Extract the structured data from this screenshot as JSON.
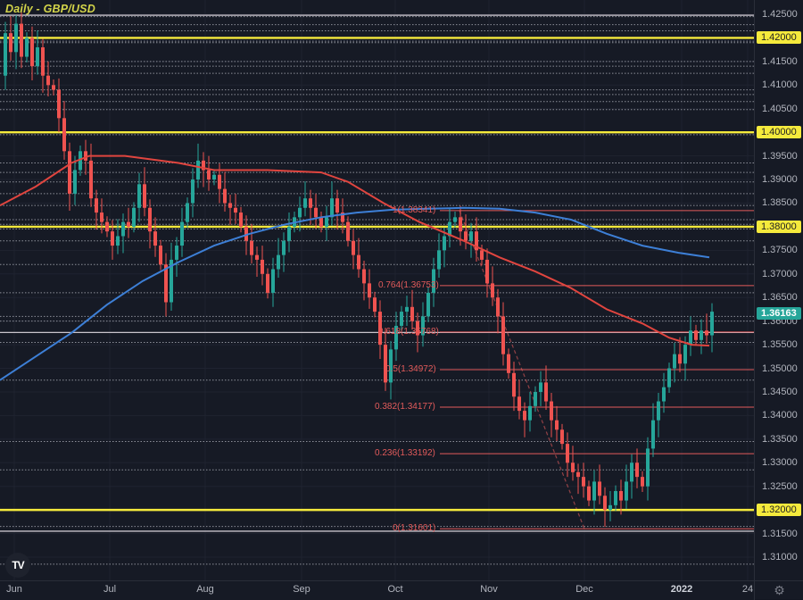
{
  "header": {
    "title": "Daily - GBP/USD"
  },
  "colors": {
    "background": "#161a25",
    "grid": "#1f2330",
    "bull": "#26a69a",
    "bear": "#ef5350",
    "ma_red": "#e0453f",
    "ma_blue": "#3d7fd6",
    "level_yellow": "#f5ea3c",
    "fib": "#e35b5b",
    "dotted": "#8c8f99",
    "last_price_bg": "#26a69a",
    "highlight_label_bg": "#f5ea3c"
  },
  "price_axis": {
    "ticks": [
      "1.42500",
      "1.42000",
      "1.41500",
      "1.41000",
      "1.40500",
      "1.40000",
      "1.39500",
      "1.39000",
      "1.38500",
      "1.38000",
      "1.37500",
      "1.37000",
      "1.36500",
      "1.36000",
      "1.35500",
      "1.35000",
      "1.34500",
      "1.34000",
      "1.33500",
      "1.33000",
      "1.32500",
      "1.32000",
      "1.31500",
      "1.31000"
    ],
    "highlighted": [
      "1.42000",
      "1.40000",
      "1.38000",
      "1.32000"
    ],
    "last_price": "1.36163"
  },
  "time_axis": {
    "labels": [
      {
        "text": "Jun",
        "x": 16,
        "bold": false
      },
      {
        "text": "Jul",
        "x": 123,
        "bold": false
      },
      {
        "text": "Aug",
        "x": 230,
        "bold": false
      },
      {
        "text": "Sep",
        "x": 338,
        "bold": false
      },
      {
        "text": "Oct",
        "x": 443,
        "bold": false
      },
      {
        "text": "Nov",
        "x": 548,
        "bold": false
      },
      {
        "text": "Dec",
        "x": 655,
        "bold": false
      },
      {
        "text": "2022",
        "x": 764,
        "bold": true
      },
      {
        "text": "24",
        "x": 838,
        "bold": false
      }
    ]
  },
  "fib_levels": [
    {
      "ratio": "1",
      "price": 1.38341,
      "label": "1(1.38341)"
    },
    {
      "ratio": "0.764",
      "price": 1.36753,
      "label": "0.764(1.36753)"
    },
    {
      "ratio": "0.618",
      "price": 1.35768,
      "label": "0.618(1.35768)"
    },
    {
      "ratio": "0.5",
      "price": 1.34972,
      "label": "0.5(1.34972)"
    },
    {
      "ratio": "0.382",
      "price": 1.34177,
      "label": "0.382(1.34177)"
    },
    {
      "ratio": "0.236",
      "price": 1.33192,
      "label": "0.236(1.33192)"
    },
    {
      "ratio": "0",
      "price": 1.31601,
      "label": "0(1.31601)"
    }
  ],
  "horizontal_levels": {
    "yellow": [
      1.42,
      1.4,
      1.38,
      1.32
    ],
    "white": [
      1.4248,
      1.3576,
      1.3155
    ]
  },
  "footer": {
    "logo": "TV",
    "settings_icon": "⚙"
  },
  "chart_data": {
    "type": "candlestick",
    "title": "Daily - GBP/USD",
    "symbol": "GBP/USD",
    "timeframe": "Daily",
    "xlabel": "",
    "ylabel": "",
    "x_ticks": [
      "Jun",
      "Jul",
      "Aug",
      "Sep",
      "Oct",
      "Nov",
      "Dec",
      "2022",
      "24"
    ],
    "y_ticks": [
      1.425,
      1.42,
      1.415,
      1.41,
      1.405,
      1.4,
      1.395,
      1.39,
      1.385,
      1.38,
      1.375,
      1.37,
      1.365,
      1.36,
      1.355,
      1.35,
      1.345,
      1.34,
      1.335,
      1.33,
      1.325,
      1.32,
      1.315,
      1.31
    ],
    "ylim": [
      1.307,
      1.4275
    ],
    "grid": true,
    "last_price": 1.36163,
    "support_resistance_levels": [
      1.42,
      1.4,
      1.38,
      1.32
    ],
    "fibonacci_retracement": {
      "high": 1.38341,
      "low": 1.31601,
      "levels": [
        {
          "ratio": 1,
          "price": 1.38341
        },
        {
          "ratio": 0.764,
          "price": 1.36753
        },
        {
          "ratio": 0.618,
          "price": 1.35768
        },
        {
          "ratio": 0.5,
          "price": 1.34972
        },
        {
          "ratio": 0.382,
          "price": 1.34177
        },
        {
          "ratio": 0.236,
          "price": 1.33192
        },
        {
          "ratio": 0,
          "price": 1.31601
        }
      ]
    },
    "moving_averages": [
      {
        "name": "MA (red, ~100-day)",
        "color": "#e0453f",
        "points": [
          [
            0,
            1.3845
          ],
          [
            40,
            1.3885
          ],
          [
            80,
            1.3935
          ],
          [
            100,
            1.395
          ],
          [
            140,
            1.395
          ],
          [
            200,
            1.3935
          ],
          [
            240,
            1.392
          ],
          [
            300,
            1.392
          ],
          [
            360,
            1.3915
          ],
          [
            390,
            1.3895
          ],
          [
            430,
            1.385
          ],
          [
            470,
            1.381
          ],
          [
            520,
            1.377
          ],
          [
            560,
            1.3735
          ],
          [
            600,
            1.3705
          ],
          [
            640,
            1.367
          ],
          [
            680,
            1.3625
          ],
          [
            720,
            1.3595
          ],
          [
            750,
            1.3565
          ],
          [
            775,
            1.355
          ],
          [
            795,
            1.3548
          ]
        ]
      },
      {
        "name": "MA (blue, ~200-day)",
        "color": "#3d7fd6",
        "points": [
          [
            0,
            1.3475
          ],
          [
            40,
            1.3525
          ],
          [
            80,
            1.3575
          ],
          [
            120,
            1.3635
          ],
          [
            160,
            1.3685
          ],
          [
            200,
            1.3725
          ],
          [
            240,
            1.376
          ],
          [
            280,
            1.3785
          ],
          [
            320,
            1.3805
          ],
          [
            360,
            1.382
          ],
          [
            400,
            1.383
          ],
          [
            440,
            1.3836
          ],
          [
            480,
            1.3838
          ],
          [
            520,
            1.384
          ],
          [
            560,
            1.3838
          ],
          [
            600,
            1.383
          ],
          [
            640,
            1.3815
          ],
          [
            680,
            1.3785
          ],
          [
            720,
            1.376
          ],
          [
            760,
            1.3745
          ],
          [
            795,
            1.3735
          ]
        ]
      }
    ],
    "price_path_summary": [
      {
        "period": "early Jun",
        "high": 1.4245,
        "close_area": 1.417
      },
      {
        "period": "mid Jun",
        "low": 1.3785,
        "note": "sharp drop below 1.40"
      },
      {
        "period": "Jul",
        "range": [
          1.3575,
          1.3985
        ]
      },
      {
        "period": "Aug",
        "range": [
          1.3605,
          1.3955
        ]
      },
      {
        "period": "Sep",
        "range": [
          1.3685,
          1.3915
        ]
      },
      {
        "period": "early Oct",
        "low": 1.3435
      },
      {
        "period": "late Oct",
        "high": 1.3834
      },
      {
        "period": "Nov",
        "low": 1.3355
      },
      {
        "period": "mid Dec",
        "low": 1.316
      },
      {
        "period": "Jan 2022",
        "last": 1.36163
      }
    ]
  }
}
